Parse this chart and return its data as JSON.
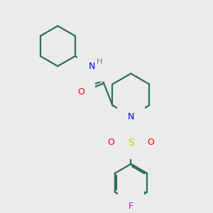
{
  "bg_color": "#ebebeb",
  "bond_color": "#2d6e5e",
  "N_color": "#0000ff",
  "O_color": "#ff0000",
  "S_color": "#cccc00",
  "F_color": "#ee00ee",
  "H_color": "#708090",
  "line_width": 1.6,
  "fig_size": [
    3.0,
    3.0
  ],
  "dpi": 100,
  "xlim": [
    0,
    10
  ],
  "ylim": [
    0,
    10
  ]
}
